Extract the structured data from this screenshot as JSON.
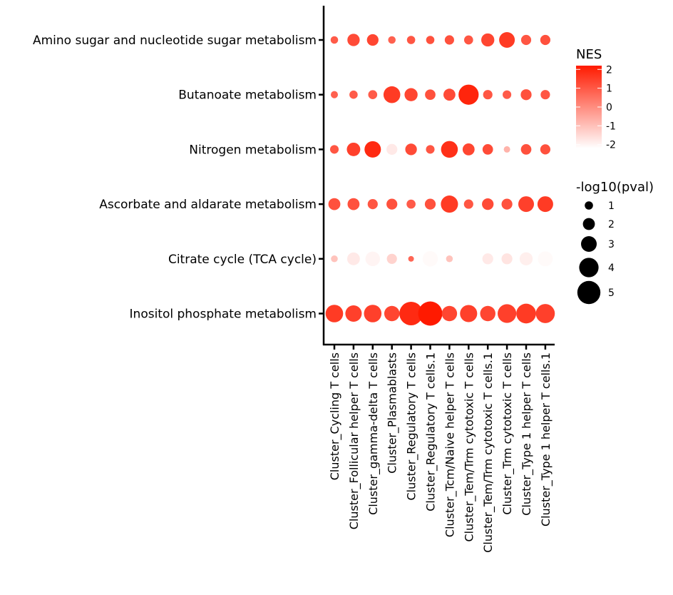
{
  "chart_data": {
    "type": "dotplot",
    "y_categories": [
      "Amino sugar and nucleotide sugar metabolism",
      "Butanoate metabolism",
      "Nitrogen metabolism",
      "Ascorbate and aldarate metabolism",
      "Citrate cycle (TCA cycle)",
      "Inositol phosphate metabolism"
    ],
    "x_categories": [
      "Cluster_Cycling T cells",
      "Cluster_Follicular helper T cells",
      "Cluster_gamma-delta T cells",
      "Cluster_Plasmablasts",
      "Cluster_Regulatory T cells",
      "Cluster_Regulatory T cells.1",
      "Cluster_Tcm/Naive helper T cells",
      "Cluster_Tem/Trm cytotoxic T cells",
      "Cluster_Tem/Trm cytotoxic T cells.1",
      "Cluster_Trm cytotoxic T cells",
      "Cluster_Type 1 helper T cells",
      "Cluster_Type 1 helper T cells.1"
    ],
    "nes": [
      [
        1.0,
        1.3,
        1.4,
        0.9,
        1.1,
        1.2,
        1.2,
        1.1,
        1.4,
        1.6,
        1.1,
        1.2
      ],
      [
        0.9,
        1.0,
        1.0,
        1.6,
        1.4,
        1.2,
        1.3,
        2.0,
        1.1,
        1.0,
        1.2,
        1.1
      ],
      [
        1.1,
        1.5,
        1.9,
        -1.6,
        1.3,
        1.1,
        1.8,
        1.4,
        1.3,
        -0.6,
        1.2,
        1.2
      ],
      [
        1.2,
        1.2,
        1.1,
        1.2,
        1.0,
        1.2,
        1.6,
        1.1,
        1.3,
        1.2,
        1.5,
        1.6
      ],
      [
        -0.9,
        -1.6,
        -1.8,
        -1.2,
        0.8,
        -1.9,
        -0.9,
        null,
        -1.6,
        -1.5,
        -1.7,
        -1.9
      ],
      [
        1.6,
        1.5,
        1.5,
        1.4,
        1.9,
        2.2,
        1.4,
        1.5,
        1.4,
        1.5,
        1.6,
        1.5
      ]
    ],
    "neg_log10_pval": [
      [
        0.8,
        2.1,
        1.9,
        0.8,
        1.0,
        1.0,
        1.3,
        1.2,
        2.3,
        3.0,
        1.5,
        1.5
      ],
      [
        0.7,
        1.0,
        1.2,
        3.3,
        2.3,
        1.6,
        2.0,
        4.2,
        1.3,
        1.1,
        1.7,
        1.3
      ],
      [
        1.1,
        2.4,
        3.2,
        1.7,
        1.9,
        1.1,
        3.3,
        2.0,
        1.6,
        0.5,
        1.6,
        1.5
      ],
      [
        2.0,
        2.0,
        1.5,
        1.7,
        1.2,
        1.7,
        3.4,
        1.3,
        1.9,
        1.7,
        3.0,
        3.0
      ],
      [
        0.6,
        2.2,
        2.7,
        1.5,
        0.3,
        2.9,
        0.6,
        null,
        1.7,
        1.7,
        2.3,
        2.8
      ],
      [
        3.5,
        3.2,
        3.5,
        2.9,
        5.1,
        5.3,
        2.9,
        3.4,
        2.9,
        3.8,
        4.1,
        3.9
      ]
    ],
    "color_scale": {
      "low": "#ffffff",
      "high": "#ff1a00",
      "range": [
        -2,
        2.2
      ]
    },
    "legend_color": {
      "title": "NES",
      "ticks": [
        "2",
        "1",
        "0",
        "-1",
        "-2"
      ],
      "tick_values": [
        2,
        1,
        0,
        -1,
        -2
      ]
    },
    "legend_size": {
      "title": "-log10(pval)",
      "labels": [
        "1",
        "2",
        "3",
        "4",
        "5"
      ],
      "values": [
        1,
        2,
        3,
        4,
        5
      ]
    },
    "title": "",
    "xlabel": "",
    "ylabel": "",
    "grid": false,
    "legend_placement": "right"
  }
}
